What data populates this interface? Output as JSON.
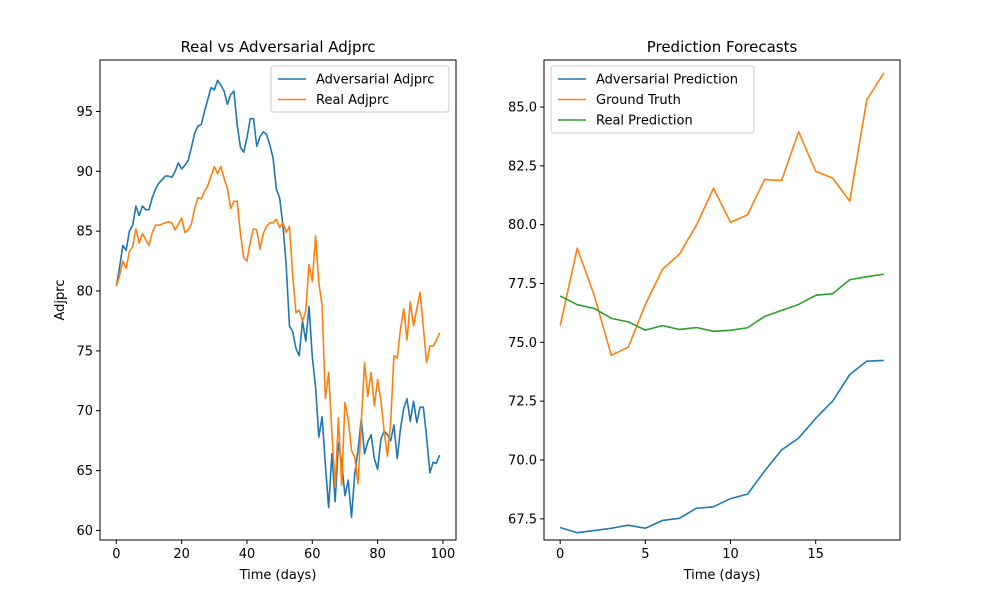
{
  "chart_data": [
    {
      "type": "line",
      "title": "Real vs Adversarial Adjprc",
      "xlabel": "Time (days)",
      "ylabel": "Adjprc",
      "xlim": [
        -5,
        104
      ],
      "ylim": [
        59.2,
        99.3
      ],
      "xticks": [
        0,
        20,
        40,
        60,
        80,
        100
      ],
      "xtick_labels": [
        "0",
        "20",
        "40",
        "60",
        "80",
        "100"
      ],
      "yticks": [
        60,
        65,
        70,
        75,
        80,
        85,
        90,
        95
      ],
      "ytick_labels": [
        "60",
        "65",
        "70",
        "75",
        "80",
        "85",
        "90",
        "95"
      ],
      "legend_position": "top-right",
      "series": [
        {
          "name": "Adversarial Adjprc",
          "color": "#1f77b4",
          "x_start": 0,
          "values": [
            80.4,
            82.0,
            83.8,
            83.4,
            85.0,
            85.5,
            87.1,
            86.3,
            87.1,
            86.8,
            86.8,
            87.8,
            88.5,
            89.0,
            89.3,
            89.6,
            89.6,
            89.5,
            90.0,
            90.7,
            90.2,
            90.5,
            90.9,
            92.0,
            93.2,
            93.8,
            93.9,
            95.0,
            96.0,
            97.0,
            96.8,
            97.6,
            97.2,
            96.7,
            95.6,
            96.4,
            96.7,
            93.9,
            92.0,
            91.6,
            92.8,
            94.4,
            94.4,
            92.1,
            92.9,
            93.3,
            93.1,
            92.2,
            91.1,
            88.5,
            87.8,
            85.5,
            82.2,
            77.1,
            76.6,
            75.2,
            74.6,
            77.5,
            75.8,
            78.7,
            74.5,
            72.0,
            67.8,
            69.5,
            65.5,
            61.9,
            66.4,
            62.4,
            67.3,
            65.7,
            62.9,
            64.2,
            61.1,
            64.7,
            66.7,
            69.3,
            66.4,
            67.4,
            68.0,
            66.0,
            65.1,
            67.6,
            68.3,
            68.0,
            67.5,
            68.8,
            66.0,
            68.5,
            70.2,
            71.0,
            69.1,
            70.8,
            69.0,
            70.3,
            70.3,
            67.8,
            64.8,
            65.7,
            65.6,
            66.3
          ]
        },
        {
          "name": "Real Adjprc",
          "color": "#ff7f0e",
          "x_start": 0,
          "values": [
            80.4,
            81.3,
            82.5,
            81.9,
            83.3,
            83.7,
            85.2,
            84.0,
            84.8,
            84.3,
            83.8,
            84.9,
            85.5,
            85.5,
            85.6,
            85.7,
            85.8,
            85.7,
            85.1,
            85.6,
            86.1,
            84.9,
            85.1,
            85.6,
            86.9,
            87.8,
            87.7,
            88.3,
            88.8,
            89.6,
            90.4,
            89.8,
            90.4,
            89.4,
            88.6,
            86.9,
            87.5,
            87.5,
            84.8,
            82.8,
            82.5,
            84.1,
            85.2,
            85.1,
            83.5,
            84.8,
            85.4,
            85.7,
            85.7,
            86.0,
            85.3,
            85.7,
            84.9,
            85.4,
            81.3,
            78.2,
            78.4,
            77.5,
            78.3,
            82.2,
            80.8,
            84.6,
            80.7,
            78.8,
            71.0,
            73.2,
            68.2,
            63.6,
            69.4,
            63.8,
            70.7,
            69.3,
            66.7,
            66.1,
            63.9,
            69.0,
            74.0,
            71.2,
            73.2,
            70.4,
            72.6,
            70.9,
            68.3,
            66.2,
            69.0,
            74.6,
            74.4,
            76.8,
            78.5,
            75.9,
            79.1,
            77.1,
            78.5,
            79.9,
            77.0,
            74.0,
            75.4,
            75.4,
            75.9,
            76.5
          ]
        }
      ]
    },
    {
      "type": "line",
      "title": "Prediction Forecasts",
      "xlabel": "Time (days)",
      "ylabel": "",
      "xlim": [
        -0.95,
        19.95
      ],
      "ylim": [
        66.6,
        87.0
      ],
      "xticks": [
        0,
        5,
        10,
        15
      ],
      "xtick_labels": [
        "0",
        "5",
        "10",
        "15"
      ],
      "yticks": [
        67.5,
        70.0,
        72.5,
        75.0,
        77.5,
        80.0,
        82.5,
        85.0
      ],
      "ytick_labels": [
        "67.5",
        "70.0",
        "72.5",
        "75.0",
        "77.5",
        "80.0",
        "82.5",
        "85.0"
      ],
      "legend_position": "top-left",
      "series": [
        {
          "name": "Adversarial Prediction",
          "color": "#1f77b4",
          "x_start": 0,
          "values": [
            67.13,
            66.91,
            67.0,
            67.1,
            67.23,
            67.1,
            67.43,
            67.52,
            67.95,
            68.01,
            68.36,
            68.55,
            69.53,
            70.43,
            70.93,
            71.77,
            72.51,
            73.63,
            74.2,
            74.23
          ]
        },
        {
          "name": "Ground Truth",
          "color": "#ff7f0e",
          "x_start": 0,
          "values": [
            75.7,
            79.0,
            77.0,
            74.45,
            74.8,
            76.6,
            78.1,
            78.75,
            79.98,
            81.55,
            80.1,
            80.42,
            81.92,
            81.88,
            83.95,
            82.27,
            81.98,
            81.0,
            85.3,
            86.45
          ]
        },
        {
          "name": "Real Prediction",
          "color": "#2ca02c",
          "x_start": 0,
          "values": [
            76.97,
            76.6,
            76.44,
            76.02,
            75.87,
            75.52,
            75.71,
            75.55,
            75.63,
            75.47,
            75.51,
            75.62,
            76.1,
            76.36,
            76.61,
            77.0,
            77.07,
            77.66,
            77.79,
            77.9
          ]
        }
      ]
    }
  ]
}
